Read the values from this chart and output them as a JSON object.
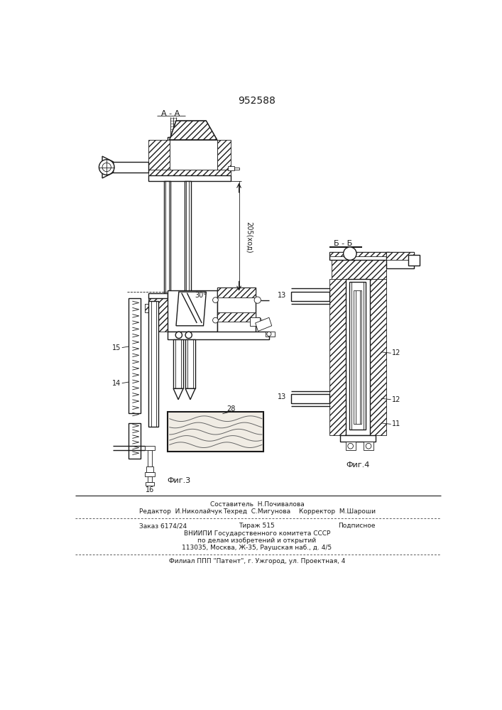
{
  "title": "952588",
  "background_color": "#ffffff",
  "line_color": "#1a1a1a",
  "fig_label_3": "Фиг.3",
  "fig_label_4": "Фиг.4",
  "section_aa": "A - A",
  "section_bb": "Б - Б",
  "dim_205": "205(ход)",
  "angle_30": "30°"
}
